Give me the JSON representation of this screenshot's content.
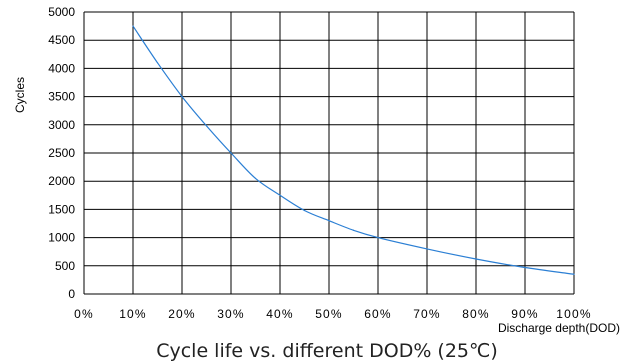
{
  "chart_data": {
    "type": "line",
    "title": "",
    "caption": "Cycle life vs. different DOD% (25℃)",
    "xlabel": "Discharge depth(DOD)",
    "ylabel": "Cycles",
    "xlim": [
      0,
      100
    ],
    "ylim": [
      0,
      5000
    ],
    "grid": true,
    "x_tick_labels": [
      "0%",
      "10%",
      "20%",
      "30%",
      "40%",
      "50%",
      "60%",
      "70%",
      "80%",
      "90%",
      "100%"
    ],
    "y_tick_labels": [
      "0",
      "500",
      "1000",
      "1500",
      "2000",
      "2500",
      "3000",
      "3500",
      "4000",
      "4500",
      "5000"
    ],
    "series": [
      {
        "color": "#2b7fd4",
        "x": [
          10,
          15,
          20,
          25,
          30,
          35,
          40,
          45,
          50,
          55,
          60,
          70,
          80,
          90,
          100
        ],
        "y": [
          4750,
          4100,
          3500,
          2980,
          2500,
          2050,
          1750,
          1480,
          1300,
          1130,
          1000,
          800,
          620,
          470,
          350
        ]
      }
    ]
  }
}
